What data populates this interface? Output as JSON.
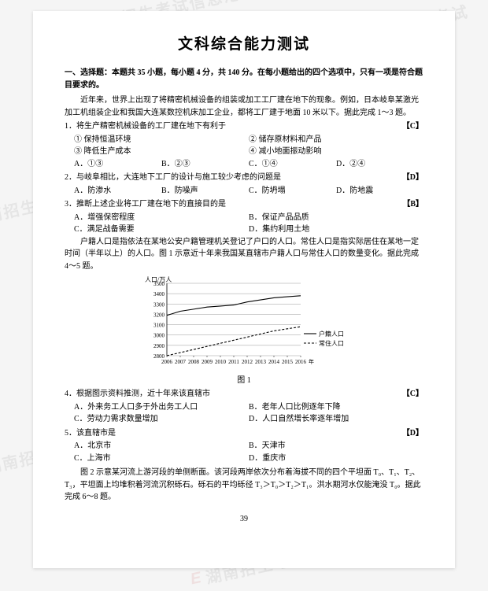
{
  "title": "文科综合能力测试",
  "section": "一、选择题：本题共 35 小题，每小题 4 分，共 140 分。在每小题给出的四个选项中，只有一项是符合题目要求的。",
  "intro1": "近年来，世界上出现了将精密机械设备的组装或加工工厂建在地下的现象。例如，日本岐阜某激光加工机组装企业和我国大连某数控机床加工企业，都将工厂建于地面 10 米以下。据此完成 1～3 题。",
  "q1": {
    "stem": "1．将生产精密机械设备的工厂建在地下有利于",
    "answer": "【C】",
    "s1": "① 保持恒温环境",
    "s2": "② 储存原材料和产品",
    "s3": "③ 降低生产成本",
    "s4": "④ 减小地面振动影响",
    "a": "A．①③",
    "b": "B．②③",
    "c": "C．①④",
    "d": "D．②④"
  },
  "q2": {
    "stem": "2．与岐阜相比，大连地下工厂的设计与施工较少考虑的问题是",
    "answer": "【D】",
    "a": "A．防渗水",
    "b": "B．防噪声",
    "c": "C．防坍塌",
    "d": "D．防地震"
  },
  "q3": {
    "stem": "3．推断上述企业将工厂建在地下的直接目的是",
    "answer": "【B】",
    "a": "A．增强保密程度",
    "b": "B．保证产品品质",
    "c": "C．满足战备需要",
    "d": "D．集约利用土地"
  },
  "intro2": "户籍人口是指依法在某地公安户籍管理机关登记了户口的人口。常住人口是指实际居住在某地一定时间（半年以上）的人口。图 1 示意近十年来我国某直辖市户籍人口与常住人口的数量变化。据此完成 4～5 题。",
  "chart": {
    "ylabel": "人口/万人",
    "xlabel": "年",
    "caption": "图 1",
    "ylim": [
      2800,
      3500
    ],
    "ytick_step": 100,
    "yticks": [
      2800,
      2900,
      3000,
      3100,
      3200,
      3300,
      3400,
      3500
    ],
    "years": [
      2006,
      2007,
      2008,
      2009,
      2010,
      2011,
      2012,
      2013,
      2014,
      2015,
      2016
    ],
    "series": [
      {
        "name": "户籍人口",
        "style": "solid",
        "values": [
          3190,
          3230,
          3250,
          3270,
          3280,
          3290,
          3320,
          3340,
          3360,
          3370,
          3380
        ]
      },
      {
        "name": "常住人口",
        "style": "dashed",
        "values": [
          2800,
          2830,
          2860,
          2890,
          2920,
          2950,
          2980,
          3010,
          3040,
          3060,
          3080
        ]
      }
    ],
    "grid_color": "#999999",
    "line_color": "#000000",
    "bg": "#ffffff"
  },
  "q4": {
    "stem": "4．根据图示资料推测，近十年来该直辖市",
    "answer": "【C】",
    "a": "A．外来务工人口多于外出务工人口",
    "b": "B．老年人口比例逐年下降",
    "c": "C．劳动力需求数量增加",
    "d": "D．人口自然增长率逐年增加"
  },
  "q5": {
    "stem": "5．该直辖市是",
    "answer": "【D】",
    "a": "A．北京市",
    "b": "B．天津市",
    "c": "C．上海市",
    "d": "D．重庆市"
  },
  "intro3": "图 2 示意某河流上游河段的单侧断面。该河段两岸依次分布着海拔不同的四个平坦面 T₀、T₁、T₂、T₃，平坦面上均堆积着河流沉积砾石。砾石的平均砾径 T₃＞T₀＞T₂＞T₁。洪水期河水仅能淹没 T₀。据此完成 6～8 题。",
  "pagenum": "39",
  "watermark": {
    "logo": "E",
    "text": "湖南招生考试信息港",
    "short": "湖南招生考试"
  }
}
